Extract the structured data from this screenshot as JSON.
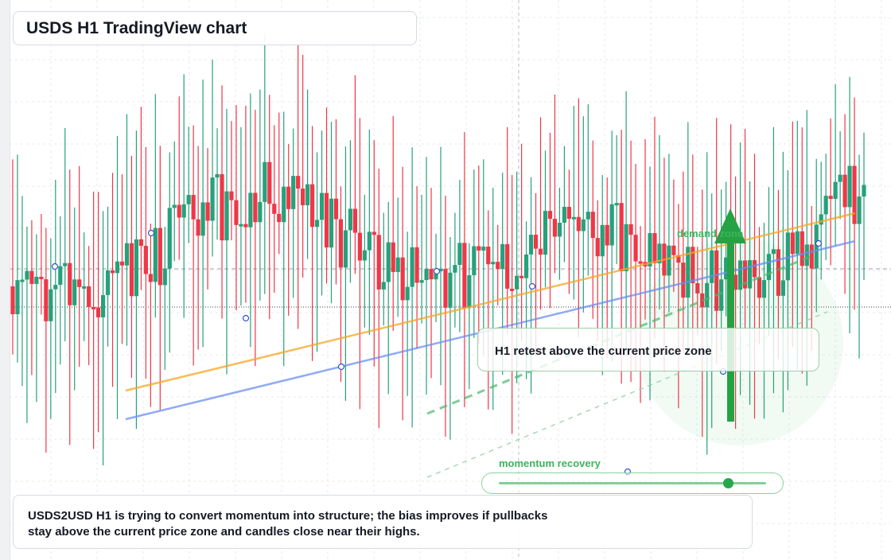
{
  "title": "USDS H1 TradingView chart",
  "description": "USDS2USD H1 is trying to convert momentum into structure; the bias improves if pullbacks stay above the current price zone and candles close near their highs.",
  "callout": "H1 retest above the current price zone",
  "momentum_label": "momentum recovery",
  "demand_label": "demand zone",
  "colors": {
    "up": "#26a17b",
    "down": "#ef3747",
    "trend_orange": "#f5a623",
    "trend_blue": "#6b8ef0",
    "accent_green": "#25a244"
  },
  "chart_data": {
    "type": "candlestick",
    "symbol": "USDS2USD",
    "timeframe": "H1",
    "candle_count": 180,
    "price_axis_visible": false,
    "grid": true,
    "reference_lines": [
      "dashed current-price line",
      "dotted price line"
    ],
    "trendlines": [
      {
        "color": "orange",
        "direction": "rising"
      },
      {
        "color": "blue",
        "direction": "rising"
      },
      {
        "color": "green",
        "style": "dashed",
        "direction": "rising"
      }
    ],
    "momentum": {
      "level": 0.86
    },
    "annotations": [
      "H1 retest above the current price zone",
      "momentum recovery",
      "demand zone"
    ]
  }
}
